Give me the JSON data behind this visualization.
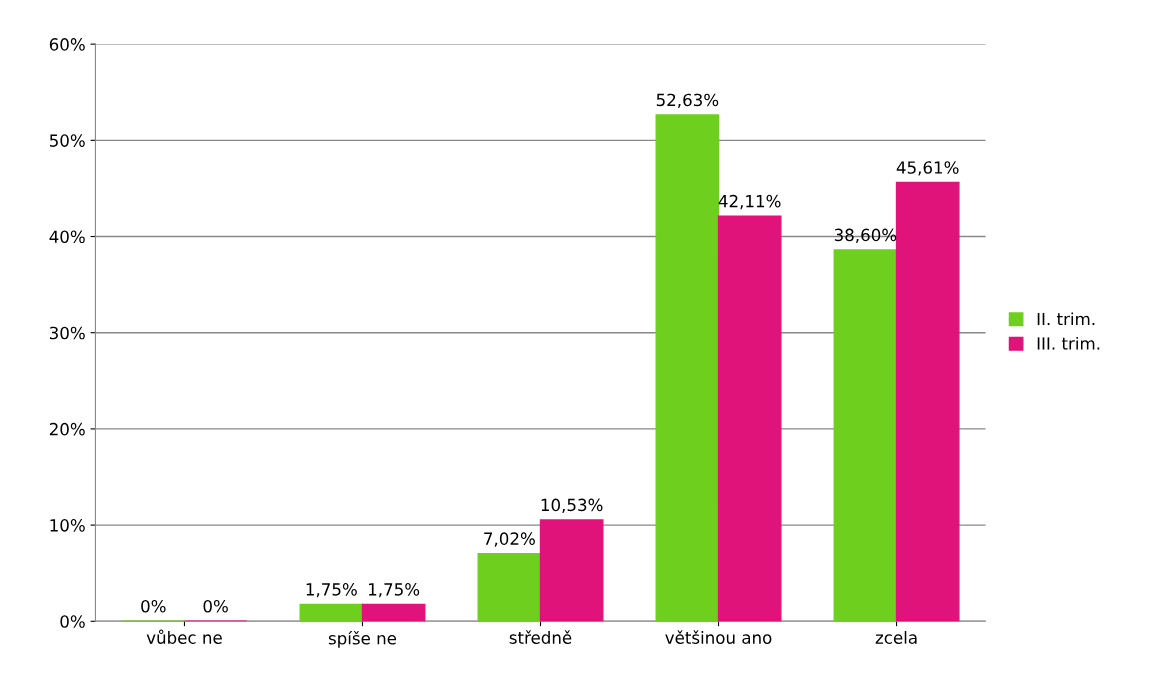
{
  "chart_data": {
    "type": "bar",
    "categories": [
      "vůbec ne",
      "spíše ne",
      "středně",
      "většinou ano",
      "zcela"
    ],
    "series": [
      {
        "name": "II. trim.",
        "color": "#6fcf1f",
        "values": [
          0,
          1.75,
          7.02,
          52.63,
          38.6
        ],
        "value_labels": [
          "0%",
          "1,75%",
          "7,02%",
          "52,63%",
          "38,60%"
        ]
      },
      {
        "name": "III. trim.",
        "color": "#e0137a",
        "values": [
          0,
          1.75,
          10.53,
          42.11,
          45.61
        ],
        "value_labels": [
          "0%",
          "1,75%",
          "10,53%",
          "42,11%",
          "45,61%"
        ]
      }
    ],
    "ylim": [
      0,
      60
    ],
    "yticks": [
      {
        "value": 0,
        "label": "0%"
      },
      {
        "value": 10,
        "label": "10%"
      },
      {
        "value": 20,
        "label": "20%"
      },
      {
        "value": 30,
        "label": "30%"
      },
      {
        "value": 40,
        "label": "40%"
      },
      {
        "value": 50,
        "label": "50%"
      },
      {
        "value": 60,
        "label": "60%"
      }
    ],
    "grid": "y",
    "legend": "right"
  }
}
